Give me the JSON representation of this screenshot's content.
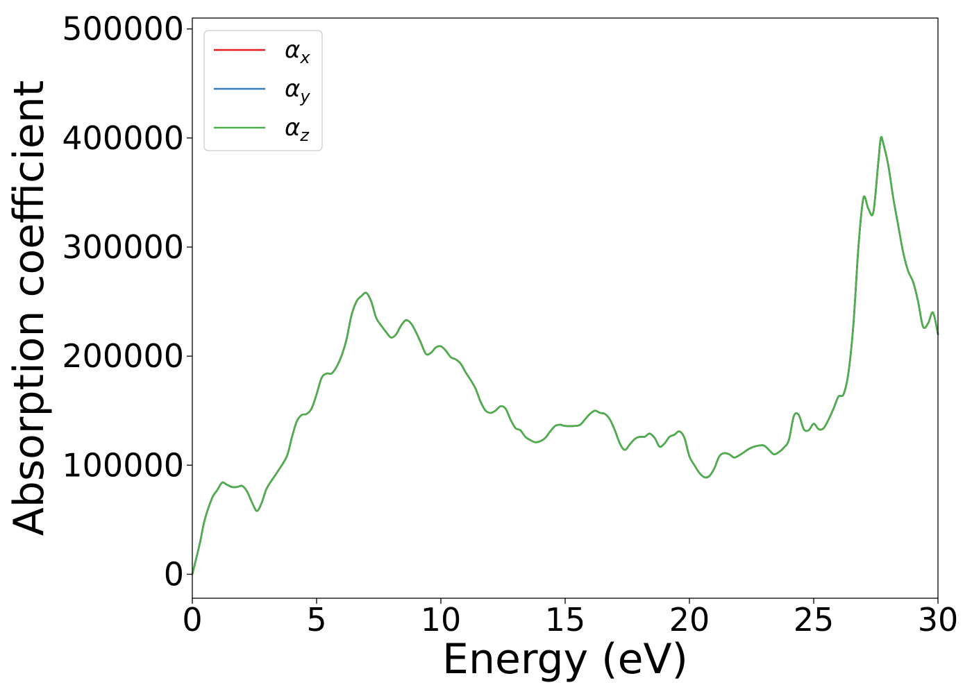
{
  "chart_data": {
    "type": "line",
    "xlabel": "Energy (eV)",
    "ylabel": "Absorption coefficient",
    "xlim": [
      0,
      30
    ],
    "ylim": [
      -22000,
      510000
    ],
    "xticks": [
      0,
      5,
      10,
      15,
      20,
      25,
      30
    ],
    "yticks": [
      0,
      100000,
      200000,
      300000,
      400000,
      500000
    ],
    "grid": false,
    "legend_position": "top-left",
    "x": [
      0.0,
      0.3,
      0.5,
      0.8,
      1.0,
      1.2,
      1.4,
      1.6,
      1.8,
      2.0,
      2.2,
      2.4,
      2.6,
      2.8,
      3.0,
      3.4,
      3.8,
      4.0,
      4.2,
      4.4,
      4.6,
      4.8,
      5.0,
      5.2,
      5.4,
      5.6,
      5.8,
      6.0,
      6.2,
      6.4,
      6.6,
      6.8,
      7.0,
      7.2,
      7.4,
      7.6,
      7.8,
      8.0,
      8.2,
      8.4,
      8.6,
      8.8,
      9.0,
      9.2,
      9.4,
      9.6,
      9.8,
      10.0,
      10.2,
      10.4,
      10.6,
      10.8,
      11.0,
      11.2,
      11.4,
      11.6,
      11.8,
      12.0,
      12.2,
      12.4,
      12.6,
      12.8,
      13.0,
      13.2,
      13.4,
      13.6,
      13.8,
      14.0,
      14.2,
      14.4,
      14.6,
      14.8,
      15.0,
      15.4,
      15.6,
      15.8,
      16.0,
      16.2,
      16.4,
      16.6,
      16.8,
      17.0,
      17.2,
      17.4,
      17.6,
      17.8,
      18.0,
      18.2,
      18.4,
      18.6,
      18.8,
      19.0,
      19.2,
      19.4,
      19.6,
      19.8,
      20.0,
      20.2,
      20.4,
      20.6,
      20.8,
      21.0,
      21.2,
      21.4,
      21.6,
      21.8,
      22.0,
      22.2,
      22.4,
      22.6,
      22.8,
      23.0,
      23.2,
      23.4,
      23.6,
      23.8,
      24.0,
      24.2,
      24.4,
      24.6,
      24.8,
      25.0,
      25.2,
      25.4,
      25.6,
      25.8,
      26.0,
      26.2,
      26.4,
      26.6,
      26.8,
      27.0,
      27.2,
      27.4,
      27.6,
      27.7,
      27.8,
      28.0,
      28.2,
      28.4,
      28.6,
      28.8,
      29.0,
      29.2,
      29.4,
      29.6,
      29.8,
      30.0
    ],
    "series": [
      {
        "name": "α_x",
        "color": "#e41a1c",
        "values": [
          0,
          28000,
          50000,
          70000,
          77000,
          84000,
          82000,
          80000,
          80000,
          81000,
          76000,
          66000,
          58000,
          66000,
          79000,
          93000,
          108000,
          125000,
          140000,
          146000,
          147000,
          152000,
          165000,
          180000,
          184000,
          184000,
          190000,
          200000,
          215000,
          237000,
          250000,
          255000,
          258000,
          250000,
          235000,
          228000,
          222000,
          217000,
          220000,
          228000,
          233000,
          230000,
          222000,
          212000,
          202000,
          203000,
          208000,
          209000,
          205000,
          199000,
          197000,
          193000,
          185000,
          178000,
          170000,
          158000,
          150000,
          148000,
          150000,
          154000,
          152000,
          142000,
          134000,
          132000,
          126000,
          123000,
          121000,
          122000,
          125000,
          131000,
          136000,
          137000,
          136000,
          136000,
          137000,
          142000,
          147000,
          150000,
          148000,
          147000,
          142000,
          132000,
          120000,
          114000,
          119000,
          124000,
          126000,
          126000,
          129000,
          125000,
          117000,
          120000,
          126000,
          128000,
          131000,
          125000,
          108000,
          100000,
          93000,
          89000,
          90000,
          97000,
          108000,
          111000,
          110000,
          107000,
          109000,
          112000,
          115000,
          117000,
          118000,
          118000,
          114000,
          110000,
          112000,
          116000,
          123000,
          145000,
          146000,
          133000,
          132000,
          138000,
          133000,
          134000,
          142000,
          152000,
          163000,
          165000,
          185000,
          230000,
          300000,
          345000,
          335000,
          332000,
          378000,
          400000,
          395000,
          375000,
          345000,
          320000,
          295000,
          278000,
          268000,
          250000,
          227000,
          230000,
          240000,
          220000
        ]
      },
      {
        "name": "α_y",
        "color": "#377eb8",
        "values": [
          0,
          28000,
          50000,
          70000,
          77000,
          84000,
          82000,
          80000,
          80000,
          81000,
          76000,
          66000,
          58000,
          66000,
          79000,
          93000,
          108000,
          125000,
          140000,
          146000,
          147000,
          152000,
          165000,
          180000,
          184000,
          184000,
          190000,
          200000,
          215000,
          237000,
          250000,
          255000,
          258000,
          250000,
          235000,
          228000,
          222000,
          217000,
          220000,
          228000,
          233000,
          230000,
          222000,
          212000,
          202000,
          203000,
          208000,
          209000,
          205000,
          199000,
          197000,
          193000,
          185000,
          178000,
          170000,
          158000,
          150000,
          148000,
          150000,
          154000,
          152000,
          142000,
          134000,
          132000,
          126000,
          123000,
          121000,
          122000,
          125000,
          131000,
          136000,
          137000,
          136000,
          136000,
          137000,
          142000,
          147000,
          150000,
          148000,
          147000,
          142000,
          132000,
          120000,
          114000,
          119000,
          124000,
          126000,
          126000,
          129000,
          125000,
          117000,
          120000,
          126000,
          128000,
          131000,
          125000,
          108000,
          100000,
          93000,
          89000,
          90000,
          97000,
          108000,
          111000,
          110000,
          107000,
          109000,
          112000,
          115000,
          117000,
          118000,
          118000,
          114000,
          110000,
          112000,
          116000,
          123000,
          145000,
          146000,
          133000,
          132000,
          138000,
          133000,
          134000,
          142000,
          152000,
          163000,
          165000,
          185000,
          230000,
          300000,
          345000,
          335000,
          332000,
          378000,
          400000,
          395000,
          375000,
          345000,
          320000,
          295000,
          278000,
          268000,
          250000,
          227000,
          230000,
          240000,
          220000
        ]
      },
      {
        "name": "α_z",
        "color": "#4daf4a",
        "values": [
          0,
          28000,
          50000,
          70000,
          77000,
          84000,
          82000,
          80000,
          80000,
          81000,
          76000,
          66000,
          58000,
          66000,
          79000,
          93000,
          108000,
          125000,
          140000,
          146000,
          147000,
          152000,
          165000,
          180000,
          184000,
          184000,
          190000,
          200000,
          215000,
          237000,
          250000,
          255000,
          258000,
          250000,
          235000,
          228000,
          222000,
          217000,
          220000,
          228000,
          233000,
          230000,
          222000,
          212000,
          202000,
          203000,
          208000,
          209000,
          205000,
          199000,
          197000,
          193000,
          185000,
          178000,
          170000,
          158000,
          150000,
          148000,
          150000,
          154000,
          152000,
          142000,
          134000,
          132000,
          126000,
          123000,
          121000,
          122000,
          125000,
          131000,
          136000,
          137000,
          136000,
          136000,
          137000,
          142000,
          147000,
          150000,
          148000,
          147000,
          142000,
          132000,
          120000,
          114000,
          119000,
          124000,
          126000,
          126000,
          129000,
          125000,
          117000,
          120000,
          126000,
          128000,
          131000,
          125000,
          108000,
          100000,
          93000,
          89000,
          90000,
          97000,
          108000,
          111000,
          110000,
          107000,
          109000,
          112000,
          115000,
          117000,
          118000,
          118000,
          114000,
          110000,
          112000,
          116000,
          123000,
          145000,
          146000,
          133000,
          132000,
          138000,
          133000,
          134000,
          142000,
          152000,
          163000,
          165000,
          185000,
          230000,
          300000,
          345000,
          335000,
          332000,
          378000,
          400000,
          395000,
          375000,
          345000,
          320000,
          295000,
          278000,
          268000,
          250000,
          227000,
          230000,
          240000,
          220000
        ]
      }
    ]
  }
}
